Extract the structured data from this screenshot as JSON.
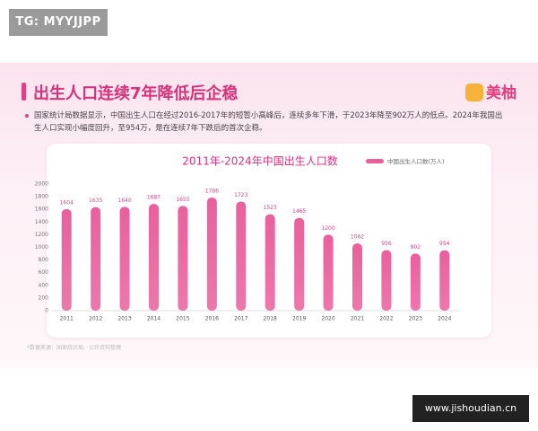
{
  "watermark": "TG: MYYJJPP",
  "header": {
    "title": "出生人口连续7年降低后企稳",
    "logo": "美柚"
  },
  "description": "国家统计局数据显示，中国出生人口在经过2016-2017年的短暂小高峰后，连续多年下滑，于2023年降至902万人的低点。2024年我国出生人口实现小幅度回升，至954万，是在连续7年下跌后的首次企稳。",
  "chart_data": {
    "type": "bar",
    "title": "2011年-2024年中国出生人口数",
    "categories": [
      "2011",
      "2012",
      "2013",
      "2014",
      "2015",
      "2016",
      "2017",
      "2018",
      "2019",
      "2020",
      "2021",
      "2022",
      "2023",
      "2024"
    ],
    "series": [
      {
        "name": "中国出生人口数(万人)",
        "color": "#e9609c",
        "values": [
          1604,
          1635,
          1640,
          1687,
          1655,
          1786,
          1723,
          1523,
          1465,
          1200,
          1062,
          956,
          902,
          954
        ]
      }
    ],
    "ylim": [
      0,
      2000
    ],
    "yticks": [
      0,
      200,
      400,
      600,
      800,
      1000,
      1200,
      1400,
      1600,
      1800,
      2000
    ],
    "grid": false
  },
  "source": "*数据来源：国家统计局、公开资料整理",
  "footer_site": "www.jishoudian.cn"
}
